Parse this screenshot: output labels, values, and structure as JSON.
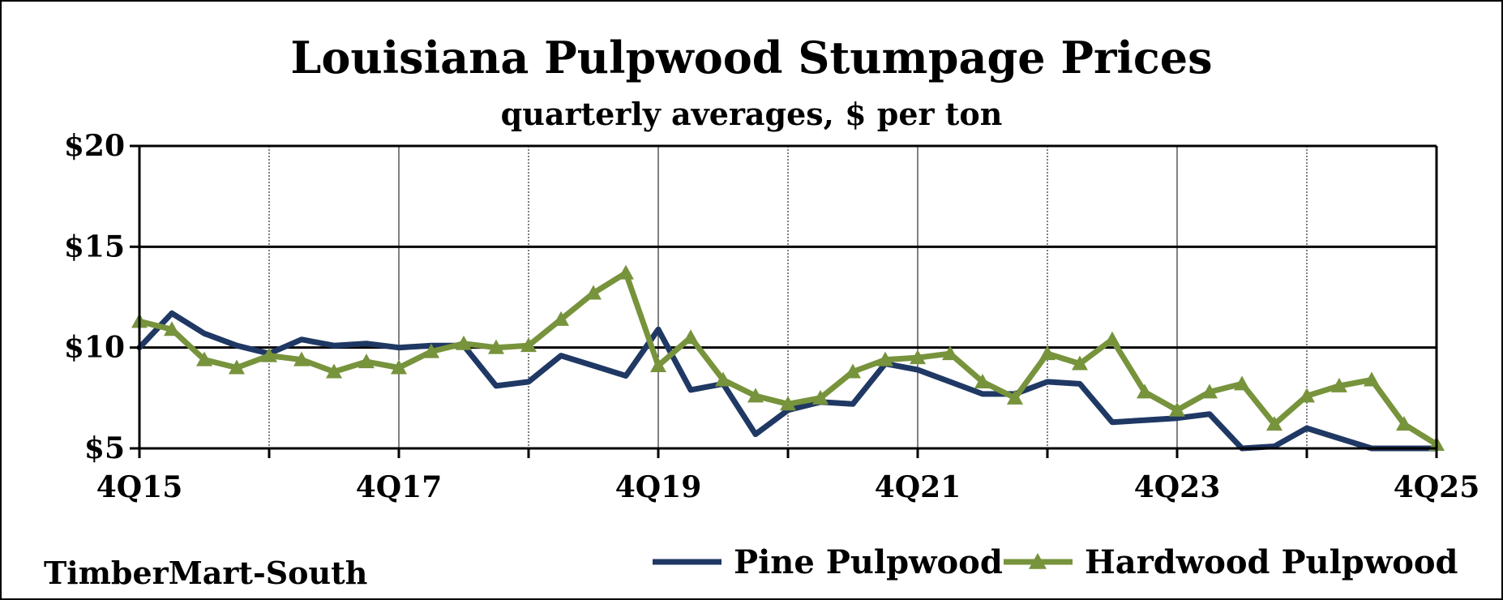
{
  "chart_data": {
    "type": "line",
    "title": "Louisiana Pulpwood Stumpage Prices",
    "subtitle": "quarterly averages, $ per ton",
    "source": "TimberMart-South",
    "x_start_label": "4Q15",
    "x_tick_labels": [
      "4Q15",
      "4Q17",
      "4Q19",
      "4Q21",
      "4Q23",
      "4Q25"
    ],
    "y_ticks": [
      5,
      10,
      15,
      20
    ],
    "y_tick_labels": [
      "$5",
      "$10",
      "$15",
      "$20"
    ],
    "ylim": [
      5,
      20
    ],
    "grid": true,
    "legend_position": "bottom-right",
    "x": [
      "4Q15",
      "1Q16",
      "2Q16",
      "3Q16",
      "4Q16",
      "1Q17",
      "2Q17",
      "3Q17",
      "4Q17",
      "1Q18",
      "2Q18",
      "3Q18",
      "4Q18",
      "1Q19",
      "2Q19",
      "3Q19",
      "4Q19",
      "1Q20",
      "2Q20",
      "3Q20",
      "4Q20",
      "1Q21",
      "2Q21",
      "3Q21",
      "4Q21",
      "1Q22",
      "2Q22",
      "3Q22",
      "4Q22",
      "1Q23",
      "2Q23",
      "3Q23",
      "4Q23",
      "1Q24",
      "2Q24",
      "3Q24",
      "4Q24",
      "1Q25",
      "2Q25",
      "3Q25",
      "4Q25"
    ],
    "series": [
      {
        "name": "Pine Pulpwood",
        "color": "#1f3864",
        "marker": "none",
        "values": [
          10.0,
          11.7,
          10.7,
          10.1,
          9.7,
          10.4,
          10.1,
          10.2,
          10.0,
          10.1,
          10.1,
          8.1,
          8.3,
          9.6,
          9.1,
          8.6,
          10.9,
          7.9,
          8.2,
          5.7,
          6.9,
          7.3,
          7.2,
          9.2,
          8.9,
          8.3,
          7.7,
          7.7,
          8.3,
          8.2,
          6.3,
          6.4,
          6.5,
          6.7,
          5.0,
          5.1,
          6.0,
          5.5,
          4.9,
          4.9,
          4.8
        ]
      },
      {
        "name": "Hardwood Pulpwood",
        "color": "#77933c",
        "marker": "triangle",
        "values": [
          11.3,
          10.9,
          9.4,
          9.0,
          9.6,
          9.4,
          8.8,
          9.3,
          9.0,
          9.8,
          10.2,
          10.0,
          10.1,
          11.4,
          12.7,
          13.7,
          9.1,
          10.5,
          8.4,
          7.6,
          7.2,
          7.5,
          8.8,
          9.4,
          9.5,
          9.7,
          8.3,
          7.5,
          9.7,
          9.2,
          10.4,
          7.8,
          6.9,
          7.8,
          8.2,
          6.2,
          7.6,
          8.1,
          8.4,
          6.2,
          5.2
        ]
      }
    ]
  }
}
